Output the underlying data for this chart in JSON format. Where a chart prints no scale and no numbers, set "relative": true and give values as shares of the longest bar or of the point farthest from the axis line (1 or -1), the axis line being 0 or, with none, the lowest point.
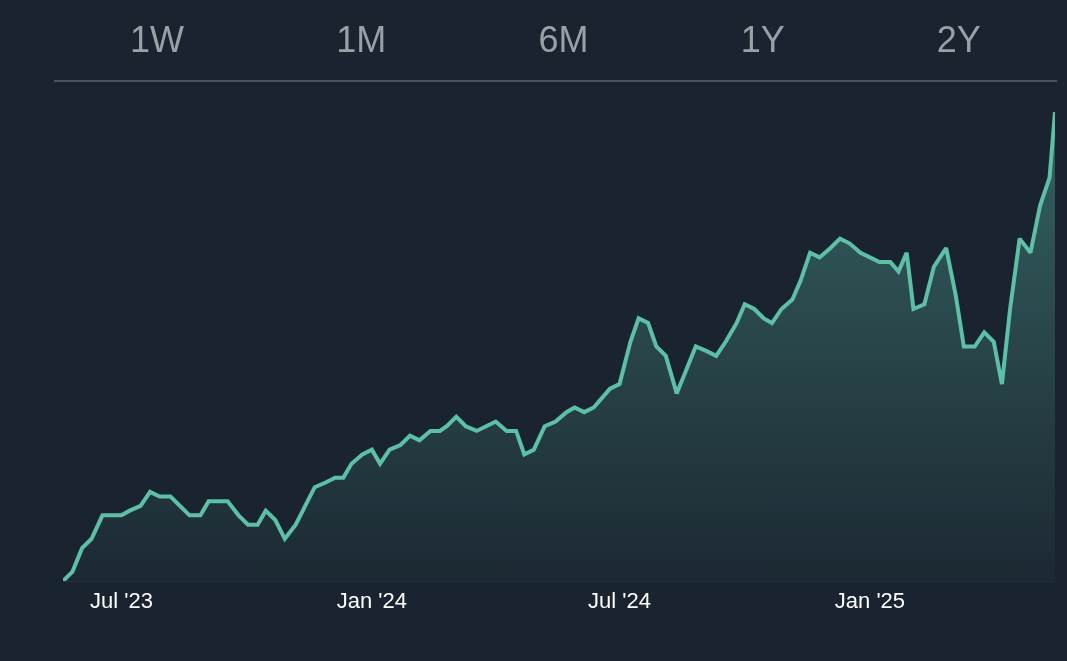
{
  "chart_data": {
    "type": "area",
    "relative": true,
    "color": "#5cbfa6",
    "marker": "none",
    "line_style": "solid",
    "annotations": [
      "1W",
      "1M",
      "6M",
      "1Y",
      "2Y"
    ],
    "xlim": [
      "2023-05-19",
      "2025-05-17"
    ],
    "xticks": [
      {
        "value": "2023-07-01",
        "label": "Jul '23"
      },
      {
        "value": "2024-01-01",
        "label": "Jan '24"
      },
      {
        "value": "2024-07-01",
        "label": "Jul '24"
      },
      {
        "value": "2025-01-01",
        "label": "Jan '25"
      }
    ],
    "x": [
      "2023-05-19",
      "2023-05-26",
      "2023-06-02",
      "2023-06-09",
      "2023-06-17",
      "2023-06-24",
      "2023-07-01",
      "2023-07-07",
      "2023-07-15",
      "2023-07-22",
      "2023-07-29",
      "2023-08-06",
      "2023-08-13",
      "2023-08-20",
      "2023-08-28",
      "2023-09-03",
      "2023-09-10",
      "2023-09-17",
      "2023-09-25",
      "2023-10-02",
      "2023-10-09",
      "2023-10-15",
      "2023-10-22",
      "2023-10-29",
      "2023-11-06",
      "2023-11-13",
      "2023-11-20",
      "2023-11-28",
      "2023-12-05",
      "2023-12-11",
      "2023-12-17",
      "2023-12-25",
      "2024-01-01",
      "2024-01-07",
      "2024-01-14",
      "2024-01-22",
      "2024-01-29",
      "2024-02-05",
      "2024-02-13",
      "2024-02-20",
      "2024-02-25",
      "2024-03-03",
      "2024-03-10",
      "2024-03-18",
      "2024-03-25",
      "2024-04-01",
      "2024-04-09",
      "2024-04-16",
      "2024-04-22",
      "2024-04-29",
      "2024-05-07",
      "2024-05-15",
      "2024-05-23",
      "2024-05-29",
      "2024-06-05",
      "2024-06-12",
      "2024-06-18",
      "2024-06-24",
      "2024-07-01",
      "2024-07-09",
      "2024-07-15",
      "2024-07-22",
      "2024-07-28",
      "2024-08-04",
      "2024-08-12",
      "2024-08-19",
      "2024-08-26",
      "2024-09-03",
      "2024-09-10",
      "2024-09-17",
      "2024-09-25",
      "2024-10-01",
      "2024-10-08",
      "2024-10-15",
      "2024-10-21",
      "2024-10-28",
      "2024-11-05",
      "2024-11-11",
      "2024-11-18",
      "2024-11-25",
      "2024-12-03",
      "2024-12-10",
      "2024-12-17",
      "2024-12-25",
      "2025-01-01",
      "2025-01-08",
      "2025-01-16",
      "2025-01-22",
      "2025-01-28",
      "2025-02-02",
      "2025-02-10",
      "2025-02-17",
      "2025-02-26",
      "2025-03-05",
      "2025-03-11",
      "2025-03-19",
      "2025-03-26",
      "2025-04-02",
      "2025-04-08",
      "2025-04-14",
      "2025-04-21",
      "2025-04-29",
      "2025-05-06",
      "2025-05-13",
      "2025-05-17"
    ],
    "values": [
      0,
      0.02,
      0.07,
      0.09,
      0.14,
      0.14,
      0.14,
      0.15,
      0.16,
      0.19,
      0.18,
      0.18,
      0.16,
      0.14,
      0.14,
      0.17,
      0.17,
      0.17,
      0.14,
      0.12,
      0.12,
      0.15,
      0.13,
      0.09,
      0.12,
      0.16,
      0.2,
      0.21,
      0.22,
      0.22,
      0.25,
      0.27,
      0.28,
      0.25,
      0.28,
      0.29,
      0.31,
      0.3,
      0.32,
      0.32,
      0.33,
      0.35,
      0.33,
      0.32,
      0.33,
      0.34,
      0.32,
      0.32,
      0.27,
      0.28,
      0.33,
      0.34,
      0.36,
      0.37,
      0.36,
      0.37,
      0.39,
      0.41,
      0.42,
      0.51,
      0.56,
      0.55,
      0.5,
      0.48,
      0.4,
      0.45,
      0.5,
      0.49,
      0.48,
      0.51,
      0.55,
      0.59,
      0.58,
      0.56,
      0.55,
      0.58,
      0.6,
      0.64,
      0.7,
      0.69,
      0.71,
      0.73,
      0.72,
      0.7,
      0.69,
      0.68,
      0.68,
      0.66,
      0.7,
      0.58,
      0.59,
      0.67,
      0.71,
      0.61,
      0.5,
      0.5,
      0.53,
      0.51,
      0.42,
      0.58,
      0.73,
      0.7,
      0.8,
      0.86,
      1
    ]
  }
}
